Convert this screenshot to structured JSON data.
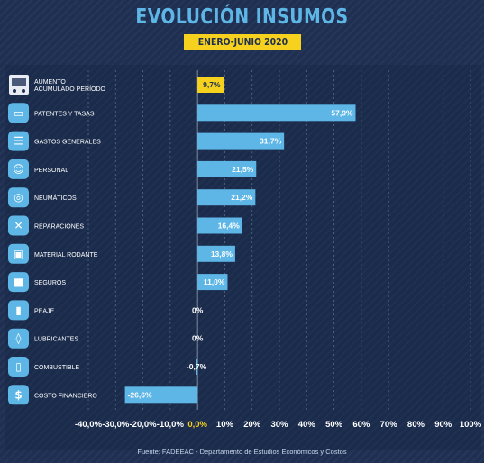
{
  "chart_data": {
    "type": "bar",
    "orientation": "horizontal",
    "title": "EVOLUCIÓN INSUMOS",
    "subtitle": "ENERO-JUNIO 2020",
    "categories": [
      "AUMENTO\nACUMULADO PERÍODO",
      "PATENTES Y TASAS",
      "GASTOS GENERALES",
      "PERSONAL",
      "NEUMÁTICOS",
      "REPARACIONES",
      "MATERIAL RODANTE",
      "SEGUROS",
      "PEAJE",
      "LUBRICANTES",
      "COMBUSTIBLE",
      "COSTO FINANCIERO"
    ],
    "values": [
      9.7,
      57.9,
      31.7,
      21.5,
      21.2,
      16.4,
      13.8,
      11.0,
      0,
      0,
      -0.7,
      -26.6
    ],
    "value_labels": [
      "9,7%",
      "57,9%",
      "31,7%",
      "21,5%",
      "21,2%",
      "16,4%",
      "13,8%",
      "11,0%",
      "0%",
      "0%",
      "-0,7%",
      "-26,6%"
    ],
    "highlight_index": 0,
    "icons": [
      "bus-icon",
      "ticket-icon",
      "document-icon",
      "person-icon",
      "tire-icon",
      "wrench-icon",
      "vehicle-icon",
      "lock-icon",
      "toll-icon",
      "oil-can-icon",
      "fuel-icon",
      "money-bag-icon"
    ],
    "xlim": [
      -40,
      100
    ],
    "xticks": [
      -40,
      -30,
      -20,
      -10,
      0,
      10,
      20,
      30,
      40,
      50,
      60,
      70,
      80,
      90,
      100
    ],
    "xtick_labels": [
      "-40,0%",
      "-30,0%",
      "-20,0%",
      "-10,0%",
      "0,0%",
      "10%",
      "20%",
      "30%",
      "40%",
      "50%",
      "60%",
      "70%",
      "80%",
      "90%",
      "100%"
    ],
    "grid": true,
    "colors": {
      "bar": "#5db6e6",
      "highlight": "#f6d21e",
      "background": "#1e2f52",
      "title": "#5db6e6"
    }
  },
  "source": "Fuente: FADEEAC - Departamento de Estudios Económicos y Costos"
}
